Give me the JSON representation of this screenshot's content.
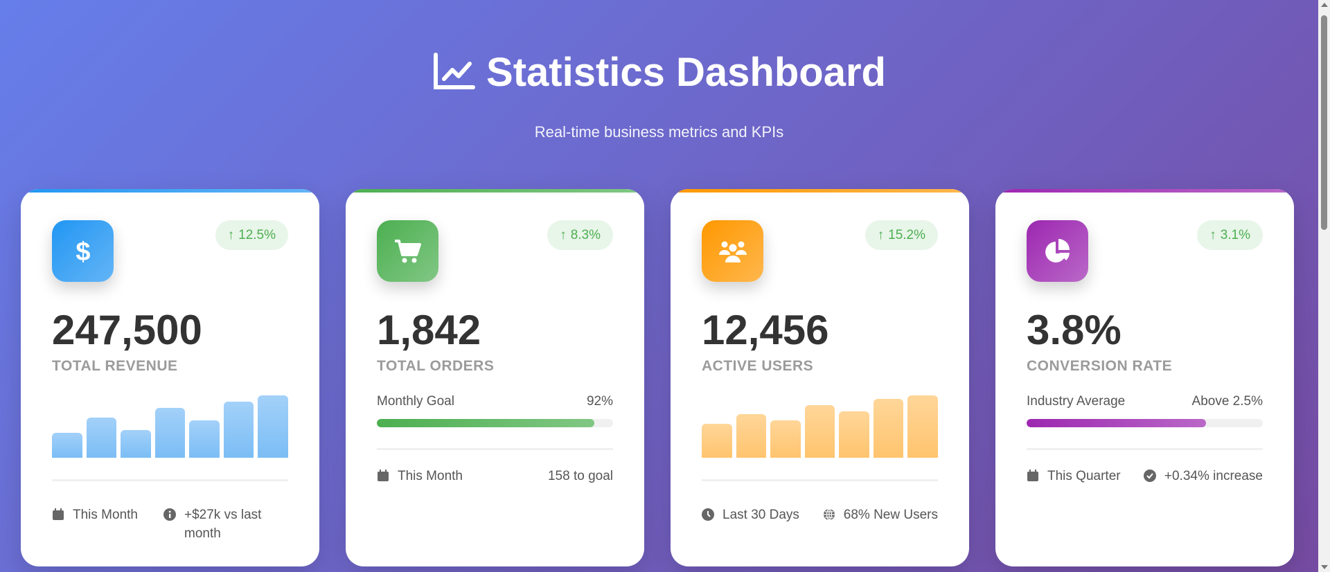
{
  "header": {
    "title": "Statistics Dashboard",
    "subtitle": "Real-time business metrics and KPIs",
    "icon": "chart-line-icon"
  },
  "colors": {
    "bg_start": "#667eea",
    "bg_end": "#764ba2",
    "blue": "#2196F3",
    "green": "#4CAF50",
    "orange": "#FF9800",
    "purple": "#9C27B0",
    "positive": "#4CAF50"
  },
  "cards": [
    {
      "icon": "dollar-icon",
      "change": "12.5%",
      "value": "247,500",
      "label": "TOTAL REVENUE",
      "bars": [
        40,
        65,
        45,
        80,
        60,
        90,
        100
      ],
      "footer": [
        {
          "icon": "calendar-icon",
          "text": "This Month"
        },
        {
          "icon": "info-circle-icon",
          "text": "+$27k vs last month"
        }
      ]
    },
    {
      "icon": "shopping-cart-icon",
      "change": "8.3%",
      "value": "1,842",
      "label": "TOTAL ORDERS",
      "progress": {
        "label": "Monthly Goal",
        "value_text": "92%",
        "percent": 92
      },
      "footer": [
        {
          "icon": "calendar-icon",
          "text": "This Month"
        },
        {
          "icon": "",
          "text": "158 to goal"
        }
      ]
    },
    {
      "icon": "users-icon",
      "change": "15.2%",
      "value": "12,456",
      "label": "ACTIVE USERS",
      "bars": [
        55,
        70,
        60,
        85,
        75,
        95,
        100
      ],
      "footer": [
        {
          "icon": "clock-icon",
          "text": "Last 30 Days"
        },
        {
          "icon": "globe-icon",
          "text": "68% New Users"
        }
      ]
    },
    {
      "icon": "pie-chart-icon",
      "change": "3.1%",
      "value": "3.8%",
      "label": "CONVERSION RATE",
      "progress": {
        "label": "Industry Average",
        "value_text": "Above 2.5%",
        "percent": 76
      },
      "footer": [
        {
          "icon": "calendar-icon",
          "text": "This Quarter"
        },
        {
          "icon": "check-circle-icon",
          "text": "+0.34% increase"
        }
      ]
    }
  ]
}
